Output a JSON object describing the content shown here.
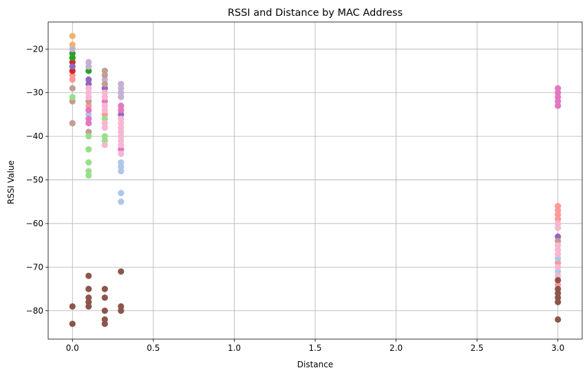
{
  "chart_data": {
    "type": "scatter",
    "title": "RSSI and Distance by MAC Address",
    "xlabel": "Distance",
    "ylabel": "RSSI Value",
    "xlim": [
      -0.15,
      3.15
    ],
    "ylim": [
      -86.5,
      -13.8
    ],
    "xticks": [
      0.0,
      0.5,
      1.0,
      1.5,
      2.0,
      2.5,
      3.0
    ],
    "xtick_labels": [
      "0.0",
      "0.5",
      "1.0",
      "1.5",
      "2.0",
      "2.5",
      "3.0"
    ],
    "yticks": [
      -80,
      -70,
      -60,
      -50,
      -40,
      -30,
      -20
    ],
    "ytick_labels": [
      "−80",
      "−70",
      "−60",
      "−50",
      "−40",
      "−30",
      "−20"
    ],
    "grid": true,
    "legend": false,
    "series": [
      {
        "color": "#f0b26b",
        "points": [
          [
            0.0,
            -17
          ],
          [
            0.0,
            -19
          ]
        ]
      },
      {
        "color": "#ff9896",
        "points": [
          [
            0.0,
            -26
          ],
          [
            0.0,
            -27
          ],
          [
            0.1,
            -33
          ],
          [
            0.2,
            -35
          ],
          [
            3.0,
            -56
          ],
          [
            3.0,
            -57
          ],
          [
            3.0,
            -58
          ],
          [
            3.0,
            -59
          ],
          [
            3.0,
            -69
          ],
          [
            3.0,
            -74
          ]
        ]
      },
      {
        "color": "#d62728",
        "points": [
          [
            0.0,
            -22
          ],
          [
            0.0,
            -23
          ],
          [
            0.0,
            -25
          ]
        ]
      },
      {
        "color": "#2ca02c",
        "points": [
          [
            0.0,
            -21
          ],
          [
            0.0,
            -22
          ],
          [
            0.1,
            -25
          ]
        ]
      },
      {
        "color": "#9467bd",
        "points": [
          [
            0.0,
            -24
          ],
          [
            0.1,
            -27
          ],
          [
            0.1,
            -28
          ],
          [
            0.2,
            -29
          ],
          [
            0.3,
            -35
          ],
          [
            3.0,
            -63
          ]
        ]
      },
      {
        "color": "#c5b0d5",
        "points": [
          [
            0.0,
            -20
          ],
          [
            0.1,
            -23
          ],
          [
            0.1,
            -24
          ],
          [
            0.2,
            -27
          ],
          [
            0.3,
            -28
          ],
          [
            0.3,
            -29
          ],
          [
            0.3,
            -30
          ],
          [
            0.3,
            -31
          ]
        ]
      },
      {
        "color": "#c49c94",
        "points": [
          [
            0.0,
            -29
          ],
          [
            0.0,
            -32
          ],
          [
            0.0,
            -37
          ],
          [
            0.1,
            -32
          ],
          [
            0.1,
            -39
          ],
          [
            0.2,
            -25
          ],
          [
            0.2,
            -26
          ],
          [
            0.2,
            -28
          ],
          [
            3.0,
            -64
          ]
        ]
      },
      {
        "color": "#98df8a",
        "points": [
          [
            0.0,
            -31
          ],
          [
            0.1,
            -40
          ],
          [
            0.1,
            -43
          ],
          [
            0.1,
            -46
          ],
          [
            0.1,
            -48
          ],
          [
            0.1,
            -49
          ],
          [
            0.2,
            -36
          ],
          [
            0.2,
            -40
          ],
          [
            0.2,
            -41
          ]
        ]
      },
      {
        "color": "#aec7e8",
        "points": [
          [
            0.1,
            -35
          ],
          [
            0.3,
            -46
          ],
          [
            0.3,
            -47
          ],
          [
            0.3,
            -48
          ],
          [
            0.3,
            -53
          ],
          [
            0.3,
            -55
          ],
          [
            3.0,
            -68
          ],
          [
            3.0,
            -71
          ]
        ]
      },
      {
        "color": "#e377c2",
        "points": [
          [
            0.1,
            -34
          ],
          [
            0.1,
            -36
          ],
          [
            0.1,
            -37
          ],
          [
            0.2,
            -32
          ],
          [
            0.3,
            -33
          ],
          [
            0.3,
            -34
          ],
          [
            0.3,
            -43
          ],
          [
            3.0,
            -29
          ],
          [
            3.0,
            -30
          ],
          [
            3.0,
            -31
          ],
          [
            3.0,
            -32
          ],
          [
            3.0,
            -33
          ]
        ]
      },
      {
        "color": "#f7b6d2",
        "points": [
          [
            0.1,
            -29
          ],
          [
            0.1,
            -30
          ],
          [
            0.1,
            -31
          ],
          [
            0.2,
            -30
          ],
          [
            0.2,
            -31
          ],
          [
            0.2,
            -33
          ],
          [
            0.2,
            -34
          ],
          [
            0.2,
            -37
          ],
          [
            0.2,
            -38
          ],
          [
            0.2,
            -42
          ],
          [
            0.3,
            -36
          ],
          [
            0.3,
            -37
          ],
          [
            0.3,
            -38
          ],
          [
            0.3,
            -39
          ],
          [
            0.3,
            -40
          ],
          [
            0.3,
            -41
          ],
          [
            0.3,
            -42
          ],
          [
            0.3,
            -44
          ],
          [
            3.0,
            -60
          ],
          [
            3.0,
            -61
          ],
          [
            3.0,
            -65
          ],
          [
            3.0,
            -66
          ],
          [
            3.0,
            -67
          ],
          [
            3.0,
            -70
          ],
          [
            3.0,
            -72
          ]
        ]
      },
      {
        "color": "#8c564b",
        "points": [
          [
            0.0,
            -79
          ],
          [
            0.0,
            -83
          ],
          [
            0.1,
            -72
          ],
          [
            0.1,
            -75
          ],
          [
            0.1,
            -77
          ],
          [
            0.1,
            -78
          ],
          [
            0.1,
            -79
          ],
          [
            0.2,
            -75
          ],
          [
            0.2,
            -77
          ],
          [
            0.2,
            -80
          ],
          [
            0.2,
            -82
          ],
          [
            0.2,
            -83
          ],
          [
            0.3,
            -71
          ],
          [
            0.3,
            -79
          ],
          [
            0.3,
            -80
          ],
          [
            3.0,
            -73
          ],
          [
            3.0,
            -75
          ],
          [
            3.0,
            -76
          ],
          [
            3.0,
            -77
          ],
          [
            3.0,
            -78
          ],
          [
            3.0,
            -82
          ]
        ]
      }
    ]
  }
}
